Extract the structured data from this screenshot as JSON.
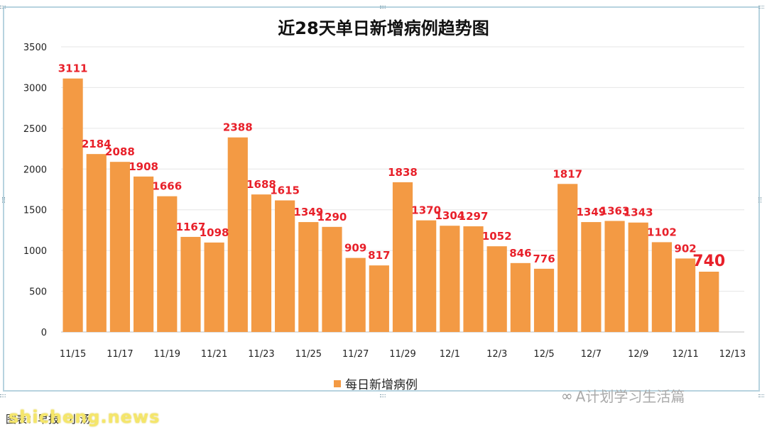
{
  "chart_data": {
    "type": "bar",
    "title": "近28天单日新增病例趋势图",
    "categories": [
      "11/15",
      "11/16",
      "11/17",
      "11/18",
      "11/19",
      "11/20",
      "11/21",
      "11/22",
      "11/23",
      "11/24",
      "11/25",
      "11/26",
      "11/27",
      "11/28",
      "11/29",
      "11/30",
      "12/1",
      "12/2",
      "12/3",
      "12/4",
      "12/5",
      "12/6",
      "12/7",
      "12/8",
      "12/9",
      "12/10",
      "12/11",
      "12/12"
    ],
    "x_tick_labels": [
      "11/15",
      "11/17",
      "11/19",
      "11/21",
      "11/23",
      "11/25",
      "11/27",
      "11/29",
      "12/1",
      "12/3",
      "12/5",
      "12/7",
      "12/9",
      "12/11",
      "12/13"
    ],
    "series": [
      {
        "name": "每日新增病例",
        "values": [
          3111,
          2184,
          2088,
          1908,
          1666,
          1167,
          1098,
          2388,
          1688,
          1615,
          1349,
          1290,
          909,
          817,
          1838,
          1370,
          1304,
          1297,
          1052,
          846,
          776,
          1817,
          1349,
          1363,
          1343,
          1102,
          902,
          740
        ]
      }
    ],
    "ylim": [
      0,
      3500
    ],
    "y_ticks": [
      0,
      500,
      1000,
      1500,
      2000,
      2500,
      3000,
      3500
    ],
    "grid": true,
    "legend": "bottom",
    "bar_color": "#f39a44",
    "label_color": "#e8202a"
  },
  "watermark": "A计划学习生活篇",
  "source_note": "图表：早报 · 小汤",
  "site": "shicheng.news"
}
